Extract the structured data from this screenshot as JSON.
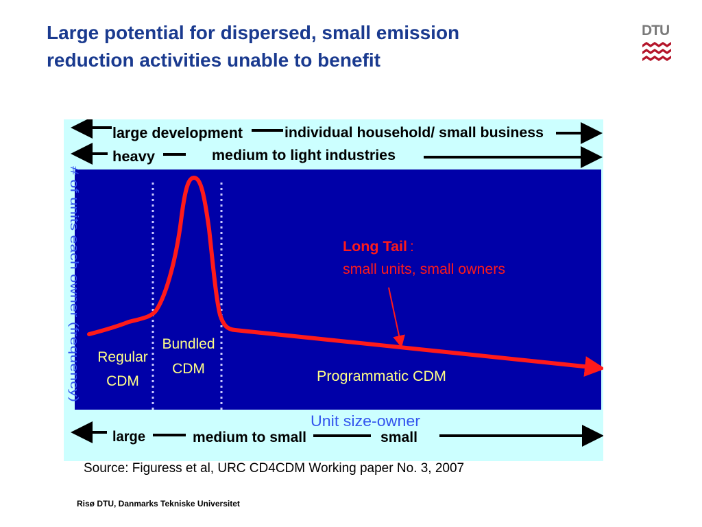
{
  "slide": {
    "title_line1": "Large potential for dispersed, small emission",
    "title_line2": "reduction activities unable to benefit",
    "logo_text": "DTU",
    "source": "Source: Figuress et al, URC CD4CDM Working paper No. 3, 2007",
    "footer": "Risø DTU, Danmarks Tekniske Universitet"
  },
  "diagram": {
    "top_row1": {
      "left": "large development",
      "right": "individual household/ small business"
    },
    "top_row2": {
      "left": "heavy",
      "right": "medium to light industries"
    },
    "y_axis_label": "# of units each owner (frequency)",
    "x_axis_label": "Unit size-owner",
    "bottom_row": {
      "left": "large",
      "middle": "medium to small",
      "right": "small"
    },
    "regions": {
      "regular": [
        "Regular",
        "CDM"
      ],
      "bundled": [
        "Bundled",
        "CDM"
      ],
      "programmatic": "Programmatic CDM"
    },
    "callout_title": "Long Tail",
    "callout_colon": ":",
    "callout_body": "small units, small owners",
    "colors": {
      "background": "#ccffff",
      "plot": "#0000a8",
      "curve": "#ff1a1a",
      "label_yellow": "#ffff88",
      "axis_blue": "#3355ee",
      "title": "#1a3a8f",
      "logo_red": "#b4152a"
    }
  }
}
